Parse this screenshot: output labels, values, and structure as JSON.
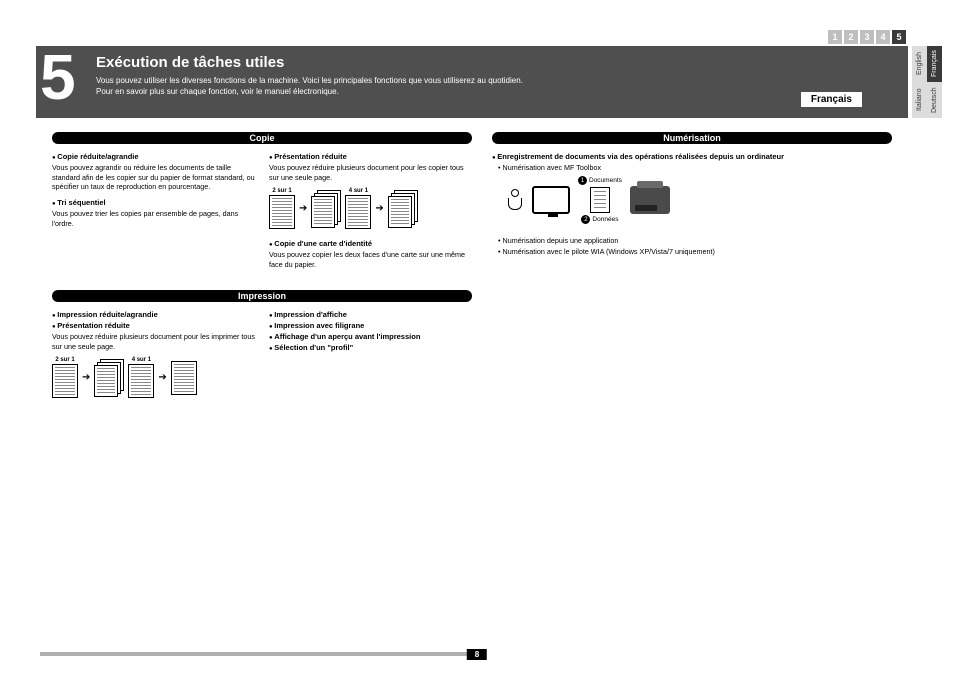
{
  "nav": {
    "boxes": [
      "1",
      "2",
      "3",
      "4",
      "5"
    ],
    "active_index": 4
  },
  "header": {
    "number": "5",
    "title": "Exécution de tâches utiles",
    "line1": "Vous pouvez utiliser les diverses fonctions de la machine. Voici les principales fonctions que vous utiliserez au quotidien.",
    "line2": "Pour en savoir plus sur chaque fonction, voir le manuel électronique.",
    "lang_badge": "Français"
  },
  "side_langs": {
    "top_left": "English",
    "top_right": "Français",
    "bottom_left": "Italiano",
    "bottom_right": "Deutsch"
  },
  "copie": {
    "header": "Copie",
    "left": {
      "b1_title": "Copie réduite/agrandie",
      "b1_text": "Vous pouvez agrandir ou réduire les documents de taille standard afin de les copier sur du papier de format standard, ou spécifier un taux de reproduction en pourcentage.",
      "b2_title": "Tri séquentiel",
      "b2_text": "Vous pouvez trier les copies par ensemble de pages, dans l'ordre."
    },
    "right": {
      "b1_title": "Présentation réduite",
      "b1_text": "Vous pouvez réduire plusieurs document pour les copier tous sur une seule page.",
      "label1": "2 sur 1",
      "label2": "4 sur 1",
      "b2_title": "Copie d'une carte d'identité",
      "b2_text": "Vous pouvez copier les deux faces d'une carte sur une même face du papier."
    }
  },
  "impression": {
    "header": "Impression",
    "left": {
      "b1_title": "Impression réduite/agrandie",
      "b2_title": "Présentation réduite",
      "b2_text": "Vous pouvez réduire plusieurs document pour les imprimer tous sur une seule page.",
      "label1": "2 sur 1",
      "label2": "4 sur 1"
    },
    "right": {
      "b1_title": "Impression d'affiche",
      "b2_title": "Impression avec filigrane",
      "b3_title": "Affichage d'un aperçu avant l'impression",
      "b4_title": "Sélection d'un \"profil\""
    }
  },
  "numerisation": {
    "header": "Numérisation",
    "b1_title": "Enregistrement de documents via des opérations réalisées depuis un ordinateur",
    "item1": "Numérisation avec MF Toolbox",
    "cal1_num": "1",
    "cal1_text": "Documents",
    "cal2_num": "2",
    "cal2_text": "Données",
    "item2": "Numérisation depuis une application",
    "item3": "Numérisation avec le pilote WIA (Windows XP/Vista/7 uniquement)"
  },
  "footer": {
    "page": "8"
  }
}
